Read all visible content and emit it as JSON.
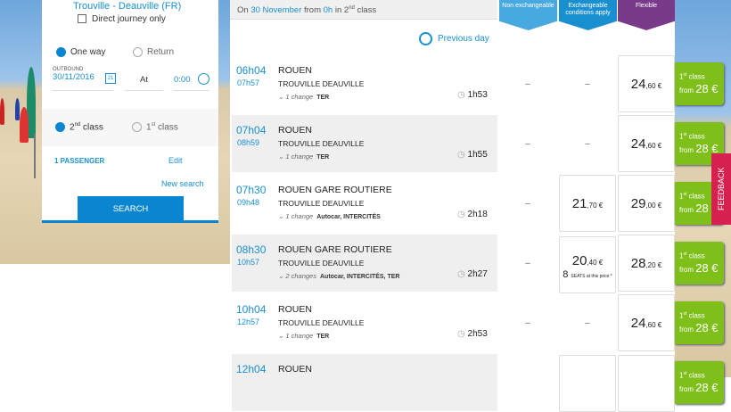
{
  "search": {
    "route": "Trouville - Deauville (FR)",
    "direct_only": "Direct journey only",
    "one_way": "One way",
    "return": "Return",
    "outbound_label": "OUTBOUND",
    "outbound_date": "30/11/2016",
    "at": "At",
    "time": "0:00",
    "class2": "2",
    "class2_sup": "nd",
    "class_word": "class",
    "class1": "1",
    "class1_sup": "st",
    "passengers": "1 PASSENGER",
    "edit": "Edit",
    "new_search": "New search",
    "search_btn": "SEARCH"
  },
  "results": {
    "hdr_on": "On",
    "hdr_date": "30 November",
    "hdr_from": "from",
    "hdr_time": "0h",
    "hdr_in": "in",
    "hdr_class": "2",
    "hdr_sup": "nd",
    "hdr_classword": "class",
    "previous_day": "Previous day",
    "tabs": [
      {
        "label": "Non exchangeable",
        "color": "#48a8e0"
      },
      {
        "label": "Exchangeable conditions apply",
        "color": "#1a8fd0"
      },
      {
        "label": "Flexible",
        "color": "#7a3a8a"
      }
    ],
    "rows": [
      {
        "dep": "06h04",
        "arr": "07h57",
        "origin": "ROUEN",
        "dest": "TROUVILLE DEAUVILLE",
        "changes": "1 change",
        "modes": "TER",
        "duration": "1h53",
        "non_exch": "–",
        "exch": "–",
        "flex": [
          "24",
          ",60 €"
        ]
      },
      {
        "dep": "07h04",
        "arr": "08h59",
        "origin": "ROUEN",
        "dest": "TROUVILLE DEAUVILLE",
        "changes": "1 change",
        "modes": "TER",
        "duration": "1h55",
        "non_exch": "–",
        "exch": "–",
        "flex": [
          "24",
          ",60 €"
        ]
      },
      {
        "dep": "07h30",
        "arr": "09h48",
        "origin": "ROUEN GARE ROUTIERE",
        "dest": "TROUVILLE DEAUVILLE",
        "changes": "1 change",
        "modes": "Autocar, INTERCITÉS",
        "duration": "2h18",
        "non_exch": "–",
        "exch": [
          "21",
          ",70 €"
        ],
        "flex": [
          "29",
          ",00 €"
        ]
      },
      {
        "dep": "08h30",
        "arr": "10h57",
        "origin": "ROUEN GARE ROUTIERE",
        "dest": "TROUVILLE DEAUVILLE",
        "changes": "2 changes",
        "modes": "Autocar, INTERCITÉS, TER",
        "duration": "2h27",
        "non_exch": "–",
        "exch": [
          "20",
          ",40 €"
        ],
        "seats": "8",
        "seats_text": "SEATS at this price *",
        "flex": [
          "28",
          ",20 €"
        ]
      },
      {
        "dep": "10h04",
        "arr": "12h57",
        "origin": "ROUEN",
        "dest": "TROUVILLE DEAUVILLE",
        "changes": "1 change",
        "modes": "TER",
        "duration": "2h53",
        "non_exch": "–",
        "exch": "–",
        "flex": [
          "24",
          ",60 €"
        ]
      },
      {
        "dep": "12h04",
        "origin": "ROUEN"
      }
    ],
    "first_class": {
      "sup": "st",
      "line1": "1",
      "word": "class",
      "from": "from",
      "price": "28 €"
    }
  },
  "feedback": "FEEDBACK"
}
